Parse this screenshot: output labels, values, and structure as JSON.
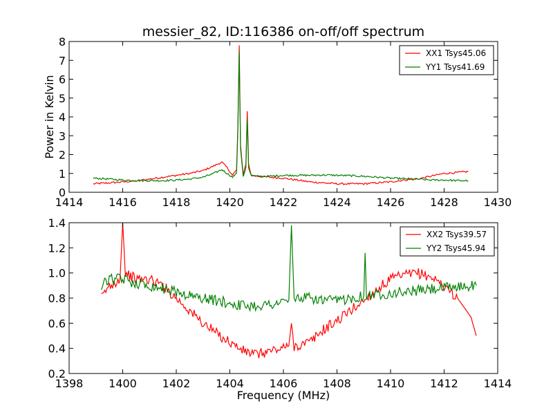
{
  "title": "messier_82, ID:116386 on-off/off spectrum",
  "colors": {
    "xx": "#ff0000",
    "yy": "#008000"
  },
  "chart_data": [
    {
      "type": "line",
      "title": "messier_82, ID:116386 on-off/off spectrum",
      "xlabel": "",
      "ylabel": "Power in Kelvin",
      "xlim": [
        1414,
        1430
      ],
      "ylim": [
        0,
        8
      ],
      "xticks": [
        "1414",
        "1416",
        "1418",
        "1420",
        "1422",
        "1424",
        "1426",
        "1428",
        "1430"
      ],
      "yticks": [
        "0",
        "1",
        "2",
        "3",
        "4",
        "5",
        "6",
        "7",
        "8"
      ],
      "legend_position": "top-right",
      "grid": false,
      "series": [
        {
          "name": "XX1 Tsys45.06",
          "color": "#ff0000",
          "x": [
            1414.9,
            1415.5,
            1416.0,
            1416.5,
            1417.0,
            1417.5,
            1418.0,
            1418.5,
            1419.0,
            1419.4,
            1419.7,
            1419.9,
            1420.1,
            1420.25,
            1420.3,
            1420.35,
            1420.4,
            1420.5,
            1420.6,
            1420.65,
            1420.7,
            1420.8,
            1421.0,
            1421.5,
            1422.0,
            1422.5,
            1423.0,
            1423.5,
            1424.0,
            1424.5,
            1425.0,
            1425.5,
            1426.0,
            1426.5,
            1427.0,
            1427.5,
            1428.0,
            1428.5,
            1428.9
          ],
          "y": [
            0.45,
            0.5,
            0.55,
            0.6,
            0.7,
            0.8,
            0.9,
            1.0,
            1.15,
            1.4,
            1.6,
            1.3,
            0.9,
            1.2,
            3.5,
            7.8,
            2.5,
            0.9,
            1.5,
            4.3,
            1.5,
            0.9,
            0.85,
            0.8,
            0.75,
            0.65,
            0.55,
            0.5,
            0.45,
            0.45,
            0.45,
            0.5,
            0.55,
            0.65,
            0.7,
            0.85,
            1.0,
            1.05,
            1.1
          ]
        },
        {
          "name": "YY1 Tsys41.69",
          "color": "#008000",
          "x": [
            1414.9,
            1415.5,
            1416.0,
            1416.5,
            1417.0,
            1417.5,
            1418.0,
            1418.5,
            1419.0,
            1419.4,
            1419.7,
            1419.9,
            1420.1,
            1420.25,
            1420.3,
            1420.35,
            1420.4,
            1420.5,
            1420.6,
            1420.65,
            1420.7,
            1420.8,
            1421.0,
            1421.5,
            1422.0,
            1422.5,
            1423.0,
            1423.5,
            1424.0,
            1424.5,
            1425.0,
            1425.5,
            1426.0,
            1426.5,
            1427.0,
            1427.5,
            1428.0,
            1428.5,
            1428.9
          ],
          "y": [
            0.75,
            0.7,
            0.65,
            0.62,
            0.62,
            0.62,
            0.65,
            0.7,
            0.8,
            1.0,
            1.2,
            1.0,
            0.8,
            1.0,
            3.3,
            7.5,
            2.3,
            0.85,
            1.3,
            3.9,
            1.3,
            0.9,
            0.85,
            0.85,
            0.9,
            0.9,
            0.9,
            0.92,
            0.9,
            0.88,
            0.85,
            0.8,
            0.75,
            0.72,
            0.7,
            0.65,
            0.65,
            0.62,
            0.62
          ]
        }
      ]
    },
    {
      "type": "line",
      "title": "",
      "xlabel": "Frequency (MHz)",
      "ylabel": "",
      "xlim": [
        1398,
        1414
      ],
      "ylim": [
        0.2,
        1.4
      ],
      "xticks": [
        "1398",
        "1400",
        "1402",
        "1404",
        "1406",
        "1408",
        "1410",
        "1412",
        "1414"
      ],
      "yticks": [
        "0.2",
        "0.4",
        "0.6",
        "0.8",
        "1.0",
        "1.2",
        "1.4"
      ],
      "legend_position": "top-right",
      "grid": false,
      "series": [
        {
          "name": "XX2 Tsys39.57",
          "color": "#ff0000",
          "x": [
            1399.2,
            1399.5,
            1399.9,
            1400.0,
            1400.1,
            1400.5,
            1401.0,
            1401.5,
            1402.0,
            1402.5,
            1403.0,
            1403.5,
            1404.0,
            1404.5,
            1405.0,
            1405.5,
            1406.0,
            1406.2,
            1406.3,
            1406.4,
            1406.5,
            1407.0,
            1407.5,
            1408.0,
            1408.5,
            1409.0,
            1409.5,
            1410.0,
            1410.5,
            1411.0,
            1411.5,
            1412.0,
            1412.5,
            1413.0,
            1413.2
          ],
          "y": [
            0.8,
            0.9,
            0.95,
            1.4,
            1.0,
            0.95,
            0.95,
            0.9,
            0.8,
            0.7,
            0.6,
            0.52,
            0.45,
            0.38,
            0.35,
            0.38,
            0.4,
            0.42,
            0.6,
            0.42,
            0.42,
            0.45,
            0.55,
            0.62,
            0.7,
            0.78,
            0.87,
            0.95,
            0.98,
            1.0,
            0.97,
            0.9,
            0.8,
            0.65,
            0.5
          ]
        },
        {
          "name": "YY2 Tsys45.94",
          "color": "#008000",
          "x": [
            1399.2,
            1399.5,
            1400.0,
            1400.5,
            1401.0,
            1401.5,
            1402.0,
            1402.5,
            1403.0,
            1403.5,
            1404.0,
            1404.5,
            1405.0,
            1405.5,
            1406.0,
            1406.2,
            1406.3,
            1406.4,
            1406.5,
            1407.0,
            1407.5,
            1408.0,
            1408.5,
            1409.0,
            1409.05,
            1409.1,
            1409.5,
            1410.0,
            1410.5,
            1411.0,
            1411.5,
            1412.0,
            1412.5,
            1413.0,
            1413.2
          ],
          "y": [
            0.9,
            0.95,
            0.95,
            0.92,
            0.9,
            0.88,
            0.85,
            0.82,
            0.8,
            0.78,
            0.76,
            0.74,
            0.74,
            0.75,
            0.77,
            0.78,
            1.38,
            0.78,
            0.8,
            0.8,
            0.78,
            0.78,
            0.8,
            0.82,
            1.16,
            0.82,
            0.83,
            0.84,
            0.85,
            0.86,
            0.87,
            0.88,
            0.89,
            0.9,
            0.9
          ]
        }
      ]
    }
  ]
}
